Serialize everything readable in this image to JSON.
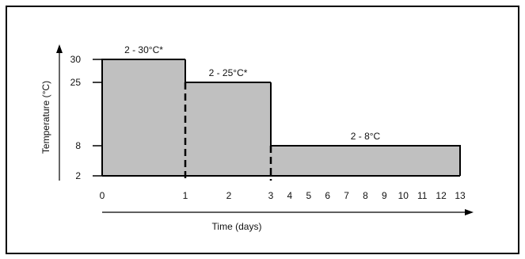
{
  "chart_data": {
    "type": "area",
    "title": "",
    "xlabel": "Time (days)",
    "ylabel": "Temperature (°C)",
    "x_ticks": [
      {
        "value": 0,
        "label": "0"
      },
      {
        "value": 1,
        "label": "1"
      },
      {
        "value": 2,
        "label": "2"
      },
      {
        "value": 3,
        "label": "3"
      },
      {
        "value": 4,
        "label": "4"
      },
      {
        "value": 5,
        "label": "5"
      },
      {
        "value": 6,
        "label": "6"
      },
      {
        "value": 7,
        "label": "7"
      },
      {
        "value": 8,
        "label": "8"
      },
      {
        "value": 9,
        "label": "9"
      },
      {
        "value": 10,
        "label": "10"
      },
      {
        "value": 11,
        "label": "11"
      },
      {
        "value": 12,
        "label": "12"
      },
      {
        "value": 13,
        "label": "13"
      }
    ],
    "y_ticks": [
      {
        "value": 2,
        "label": "2"
      },
      {
        "value": 8,
        "label": "8"
      },
      {
        "value": 25,
        "label": "25"
      },
      {
        "value": 30,
        "label": "30"
      }
    ],
    "segments": [
      {
        "x_start": 0,
        "x_end": 1,
        "y_low": 2,
        "y_high": 30,
        "label": "2 - 30°C*"
      },
      {
        "x_start": 1,
        "x_end": 3,
        "y_low": 2,
        "y_high": 25,
        "label": "2 - 25°C*"
      },
      {
        "x_start": 3,
        "x_end": 13,
        "y_low": 2,
        "y_high": 8,
        "label": "2 - 8°C"
      }
    ],
    "dashed_boundaries": [
      1,
      3
    ],
    "fill_color": "#c0c0c0",
    "line_color": "#000000",
    "border_color": "#000000",
    "grid": false,
    "legend": "none"
  }
}
